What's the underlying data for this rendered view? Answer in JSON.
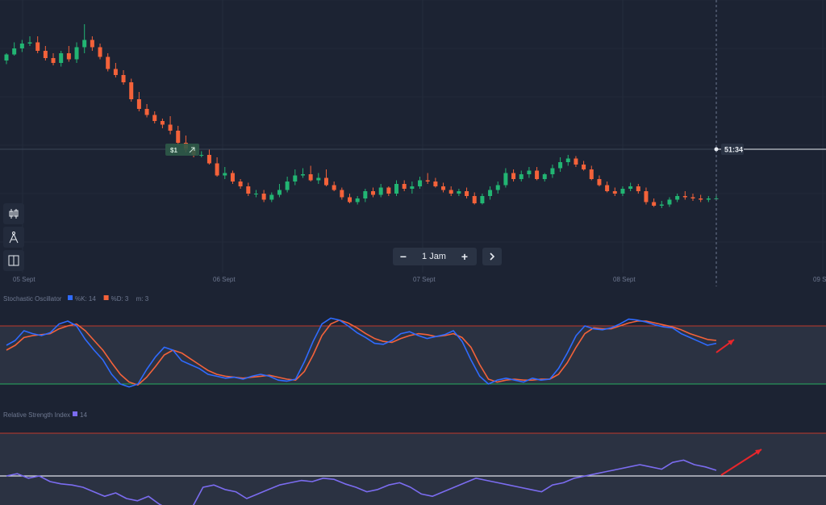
{
  "main_chart": {
    "x_labels": [
      "05 Sept",
      "06 Sept",
      "07 Sept",
      "08 Sept",
      "09 S"
    ],
    "countdown": "51:34",
    "trade_value": "$1",
    "candles": [
      [
        50,
        45,
        53,
        44
      ],
      [
        45,
        40,
        46,
        35
      ],
      [
        40,
        36,
        43,
        33
      ],
      [
        36,
        35,
        38,
        30
      ],
      [
        35,
        42,
        44,
        30
      ],
      [
        42,
        48,
        50,
        38
      ],
      [
        48,
        52,
        54,
        44
      ],
      [
        52,
        44,
        55,
        42
      ],
      [
        44,
        49,
        51,
        38
      ],
      [
        49,
        39,
        52,
        35
      ],
      [
        39,
        33,
        44,
        20
      ],
      [
        33,
        39,
        42,
        30
      ],
      [
        39,
        47,
        49,
        36
      ],
      [
        47,
        57,
        59,
        44
      ],
      [
        57,
        62,
        64,
        52
      ],
      [
        62,
        68,
        70,
        58
      ],
      [
        68,
        82,
        84,
        65
      ],
      [
        82,
        90,
        92,
        76
      ],
      [
        90,
        95,
        97,
        86
      ],
      [
        95,
        100,
        102,
        92
      ],
      [
        100,
        103,
        106,
        98
      ],
      [
        103,
        108,
        111,
        96
      ],
      [
        108,
        118,
        120,
        104
      ],
      [
        118,
        124,
        126,
        112
      ],
      [
        124,
        128,
        130,
        120
      ],
      [
        128,
        128,
        130,
        125
      ],
      [
        128,
        135,
        136,
        123
      ],
      [
        135,
        145,
        146,
        130
      ],
      [
        145,
        143,
        148,
        138
      ],
      [
        143,
        150,
        152,
        141
      ],
      [
        150,
        154,
        156,
        148
      ],
      [
        154,
        160,
        162,
        151
      ],
      [
        160,
        160,
        163,
        157
      ],
      [
        160,
        165,
        167,
        157
      ],
      [
        165,
        161,
        167,
        159
      ],
      [
        161,
        157,
        163,
        152
      ],
      [
        157,
        150,
        159,
        146
      ],
      [
        150,
        145,
        153,
        140
      ],
      [
        145,
        144,
        147,
        139
      ],
      [
        144,
        149,
        150,
        137
      ],
      [
        149,
        147,
        152,
        143
      ],
      [
        147,
        153,
        154,
        140
      ],
      [
        153,
        157,
        158,
        150
      ],
      [
        157,
        163,
        165,
        155
      ],
      [
        163,
        167,
        168,
        160
      ],
      [
        167,
        164,
        169,
        162
      ],
      [
        164,
        158,
        167,
        156
      ],
      [
        158,
        161,
        163,
        155
      ],
      [
        161,
        155,
        163,
        152
      ],
      [
        155,
        160,
        162,
        154
      ],
      [
        160,
        152,
        162,
        149
      ],
      [
        152,
        156,
        158,
        149
      ],
      [
        156,
        154,
        160,
        150
      ],
      [
        154,
        149,
        156,
        146
      ],
      [
        149,
        150,
        152,
        143
      ],
      [
        150,
        154,
        155,
        147
      ],
      [
        154,
        157,
        159,
        151
      ],
      [
        157,
        160,
        162,
        154
      ],
      [
        160,
        158,
        162,
        156
      ],
      [
        158,
        162,
        164,
        155
      ],
      [
        162,
        168,
        169,
        159
      ],
      [
        168,
        162,
        169,
        160
      ],
      [
        162,
        157,
        165,
        154
      ],
      [
        157,
        153,
        160,
        150
      ],
      [
        153,
        143,
        155,
        139
      ],
      [
        143,
        148,
        150,
        140
      ],
      [
        148,
        144,
        150,
        141
      ],
      [
        144,
        141,
        147,
        138
      ],
      [
        141,
        148,
        149,
        138
      ],
      [
        148,
        144,
        150,
        143
      ],
      [
        144,
        139,
        147,
        136
      ],
      [
        139,
        134,
        142,
        130
      ],
      [
        134,
        131,
        137,
        128
      ],
      [
        131,
        136,
        138,
        129
      ],
      [
        136,
        140,
        141,
        133
      ],
      [
        140,
        148,
        149,
        137
      ],
      [
        148,
        153,
        154,
        145
      ],
      [
        153,
        158,
        159,
        150
      ],
      [
        158,
        160,
        162,
        155
      ],
      [
        160,
        156,
        162,
        154
      ],
      [
        156,
        154,
        158,
        151
      ],
      [
        154,
        158,
        160,
        152
      ],
      [
        158,
        167,
        169,
        155
      ],
      [
        167,
        170,
        171,
        164
      ],
      [
        170,
        169,
        172,
        166
      ],
      [
        169,
        165,
        171,
        163
      ],
      [
        165,
        162,
        167,
        160
      ],
      [
        162,
        163,
        165,
        158
      ],
      [
        163,
        164,
        166,
        160
      ],
      [
        164,
        165,
        167,
        161
      ],
      [
        165,
        164,
        167,
        162
      ],
      [
        164,
        164,
        166,
        162
      ]
    ]
  },
  "current_price": 161.5,
  "toolbar": {
    "timeframe_label": "1 Jam",
    "minus_label": "−",
    "plus_label": "+"
  },
  "stochastic": {
    "title": "Stochastic Oscillator",
    "params": [
      {
        "label": "%K: 14",
        "color": "#2f6bff"
      },
      {
        "label": "%D: 3",
        "color": "#f4623a"
      },
      {
        "label": "m: 3",
        "color": ""
      }
    ],
    "upper_level": 80,
    "lower_level": 20,
    "k_values": [
      60,
      65,
      75,
      72,
      70,
      73,
      82,
      85,
      80,
      66,
      55,
      45,
      30,
      20,
      17,
      20,
      35,
      48,
      58,
      55,
      44,
      40,
      36,
      30,
      28,
      26,
      27,
      25,
      28,
      30,
      28,
      24,
      23,
      25,
      43,
      64,
      82,
      88,
      86,
      80,
      73,
      68,
      62,
      61,
      65,
      72,
      74,
      70,
      67,
      69,
      71,
      75,
      64,
      45,
      28,
      20,
      24,
      26,
      24,
      22,
      26,
      24,
      25,
      36,
      52,
      70,
      80,
      77,
      76,
      78,
      82,
      87,
      86,
      84,
      81,
      79,
      78,
      72,
      68,
      64,
      60,
      62
    ],
    "d_values": [
      55,
      60,
      68,
      70,
      71,
      72,
      77,
      80,
      82,
      75,
      65,
      55,
      42,
      30,
      22,
      19,
      27,
      38,
      50,
      55,
      52,
      46,
      40,
      34,
      30,
      28,
      27,
      26,
      27,
      28,
      29,
      27,
      25,
      24,
      33,
      50,
      70,
      82,
      86,
      83,
      78,
      72,
      67,
      64,
      63,
      67,
      70,
      72,
      71,
      69,
      70,
      72,
      68,
      58,
      40,
      25,
      22,
      24,
      25,
      24,
      24,
      25,
      25,
      30,
      42,
      58,
      72,
      78,
      77,
      77,
      80,
      83,
      85,
      85,
      83,
      81,
      79,
      76,
      72,
      69,
      66,
      65
    ]
  },
  "rsi": {
    "title": "Relative Strength Index",
    "params": [
      {
        "label": "14",
        "color": "#7b6cf0"
      }
    ],
    "midline": 50,
    "values": [
      50,
      52,
      48,
      50,
      45,
      43,
      42,
      40,
      36,
      32,
      35,
      30,
      28,
      32,
      25,
      20,
      18,
      22,
      40,
      42,
      38,
      36,
      30,
      34,
      38,
      42,
      44,
      46,
      45,
      48,
      47,
      43,
      40,
      36,
      38,
      42,
      44,
      40,
      34,
      32,
      36,
      40,
      44,
      48,
      46,
      44,
      42,
      40,
      38,
      36,
      42,
      44,
      48,
      50,
      52,
      54,
      56,
      58,
      60,
      58,
      56,
      62,
      64,
      60,
      58,
      55
    ]
  }
}
